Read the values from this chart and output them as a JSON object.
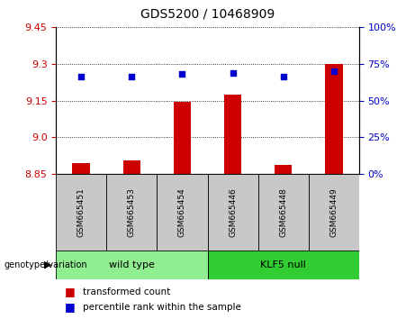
{
  "title": "GDS5200 / 10468909",
  "samples": [
    "GSM665451",
    "GSM665453",
    "GSM665454",
    "GSM665446",
    "GSM665448",
    "GSM665449"
  ],
  "bar_values": [
    8.895,
    8.905,
    9.145,
    9.175,
    8.885,
    9.3
  ],
  "percentile_values": [
    66,
    66,
    68,
    69,
    66,
    70
  ],
  "ylim_left": [
    8.85,
    9.45
  ],
  "yticks_left": [
    8.85,
    9.0,
    9.15,
    9.3,
    9.45
  ],
  "yticks_right": [
    0,
    25,
    50,
    75,
    100
  ],
  "ylim_right": [
    0,
    100
  ],
  "bar_color": "#cc0000",
  "dot_color": "#0000cc",
  "bar_width": 0.35,
  "groups": [
    {
      "label": "wild type",
      "indices": [
        0,
        1,
        2
      ],
      "color": "#90ee90"
    },
    {
      "label": "KLF5 null",
      "indices": [
        3,
        4,
        5
      ],
      "color": "#32cd32"
    }
  ],
  "legend_bar_label": "transformed count",
  "legend_dot_label": "percentile rank within the sample",
  "genotype_label": "genotype/variation",
  "tick_label_color_left": "#cc0000",
  "tick_label_color_right": "#0000cc",
  "sample_bg_color": "#c8c8c8",
  "title_fontsize": 10,
  "tick_fontsize": 8,
  "sample_fontsize": 6.5,
  "group_fontsize": 8,
  "legend_fontsize": 7.5
}
